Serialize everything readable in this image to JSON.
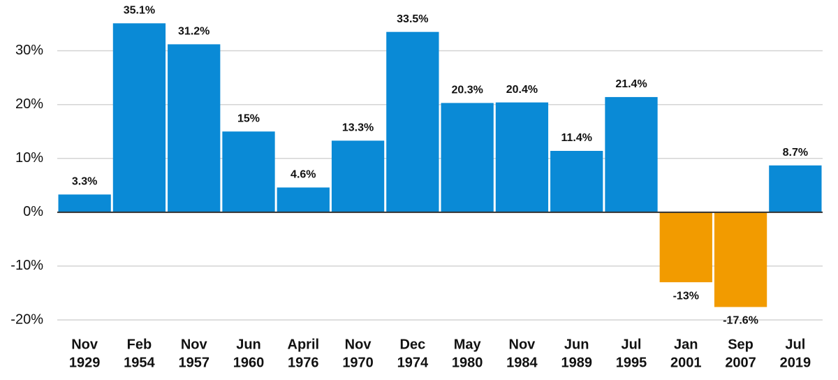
{
  "chart_data": {
    "type": "bar",
    "categories": [
      [
        "Nov",
        "1929"
      ],
      [
        "Feb",
        "1954"
      ],
      [
        "Nov",
        "1957"
      ],
      [
        "Jun",
        "1960"
      ],
      [
        "April",
        "1976"
      ],
      [
        "Nov",
        "1970"
      ],
      [
        "Dec",
        "1974"
      ],
      [
        "May",
        "1980"
      ],
      [
        "Nov",
        "1984"
      ],
      [
        "Jun",
        "1989"
      ],
      [
        "Jul",
        "1995"
      ],
      [
        "Jan",
        "2001"
      ],
      [
        "Sep",
        "2007"
      ],
      [
        "Jul",
        "2019"
      ]
    ],
    "values": [
      3.3,
      35.1,
      31.2,
      15,
      4.6,
      13.3,
      33.5,
      20.3,
      20.4,
      11.4,
      21.4,
      -13,
      -17.6,
      8.7
    ],
    "value_labels": [
      "3.3%",
      "35.1%",
      "31.2%",
      "15%",
      "4.6%",
      "13.3%",
      "33.5%",
      "20.3%",
      "20.4%",
      "11.4%",
      "21.4%",
      "-13%",
      "-17.6%",
      "8.7%"
    ],
    "colors": [
      "#0a8ad6",
      "#0a8ad6",
      "#0a8ad6",
      "#0a8ad6",
      "#0a8ad6",
      "#0a8ad6",
      "#0a8ad6",
      "#0a8ad6",
      "#0a8ad6",
      "#0a8ad6",
      "#0a8ad6",
      "#f29b00",
      "#f29b00",
      "#0a8ad6"
    ],
    "ylim": [
      -20,
      38
    ],
    "yticks": [
      {
        "value": -20,
        "label": "-20%"
      },
      {
        "value": -10,
        "label": "-10%"
      },
      {
        "value": 0,
        "label": "0%"
      },
      {
        "value": 10,
        "label": "10%"
      },
      {
        "value": 20,
        "label": "20%"
      },
      {
        "value": 30,
        "label": "30%"
      }
    ],
    "grid": true
  }
}
